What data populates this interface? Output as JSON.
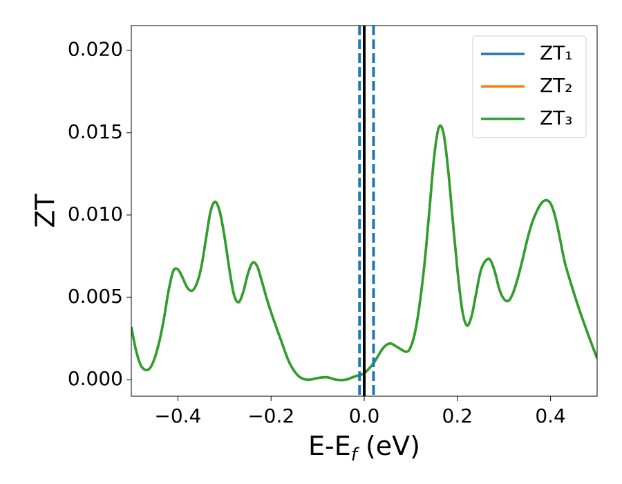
{
  "chart_data": {
    "type": "line",
    "ylabel": "ZT",
    "xlabel": [
      "E-E",
      "f",
      " (eV)"
    ],
    "xlim": [
      -0.5,
      0.5
    ],
    "ylim": [
      -0.001,
      0.0215
    ],
    "xticks": [
      {
        "value": -0.4,
        "label": "−0.4"
      },
      {
        "value": -0.2,
        "label": "−0.2"
      },
      {
        "value": 0,
        "label": "0.0"
      },
      {
        "value": 0.2,
        "label": "0.2"
      },
      {
        "value": 0.4,
        "label": "0.4"
      }
    ],
    "yticks": [
      {
        "value": 0,
        "label": "0.000"
      },
      {
        "value": 0.005,
        "label": "0.005"
      },
      {
        "value": 0.01,
        "label": "0.010"
      },
      {
        "value": 0.015,
        "label": "0.015"
      },
      {
        "value": 0.02,
        "label": "0.020"
      }
    ],
    "grid": false,
    "legend": "upper right",
    "x": [
      -0.5,
      -0.49,
      -0.48,
      -0.47,
      -0.46,
      -0.45,
      -0.44,
      -0.43,
      -0.42,
      -0.41,
      -0.4,
      -0.39,
      -0.38,
      -0.37,
      -0.36,
      -0.35,
      -0.34,
      -0.33,
      -0.32,
      -0.31,
      -0.3,
      -0.29,
      -0.28,
      -0.27,
      -0.26,
      -0.25,
      -0.24,
      -0.23,
      -0.22,
      -0.21,
      -0.2,
      -0.18,
      -0.16,
      -0.14,
      -0.12,
      -0.1,
      -0.08,
      -0.06,
      -0.04,
      -0.02,
      0,
      0.02,
      0.04,
      0.055,
      0.07,
      0.09,
      0.1,
      0.11,
      0.12,
      0.13,
      0.14,
      0.15,
      0.16,
      0.17,
      0.18,
      0.19,
      0.2,
      0.21,
      0.22,
      0.23,
      0.24,
      0.25,
      0.26,
      0.27,
      0.28,
      0.29,
      0.3,
      0.31,
      0.32,
      0.33,
      0.34,
      0.35,
      0.36,
      0.37,
      0.38,
      0.39,
      0.4,
      0.41,
      0.42,
      0.43,
      0.44,
      0.46,
      0.48,
      0.5
    ],
    "series": [
      {
        "name": "ZT₁",
        "color": "#1f77b4",
        "values": [
          0.0032,
          0.0018,
          0.0009,
          0.0006,
          0.0007,
          0.0013,
          0.0023,
          0.0037,
          0.0054,
          0.0066,
          0.0067,
          0.0062,
          0.0056,
          0.0054,
          0.0058,
          0.0068,
          0.0085,
          0.0102,
          0.0108,
          0.0102,
          0.0087,
          0.0068,
          0.0052,
          0.0047,
          0.0053,
          0.0064,
          0.0071,
          0.0069,
          0.006,
          0.005,
          0.0041,
          0.0025,
          0.001,
          0.0002,
          0,
          0.0001,
          0.00015,
          0,
          0,
          0.0002,
          0.0004,
          0.001,
          0.0019,
          0.0022,
          0.002,
          0.0017,
          0.002,
          0.003,
          0.0048,
          0.0072,
          0.0103,
          0.0135,
          0.0153,
          0.015,
          0.0128,
          0.0097,
          0.0067,
          0.0043,
          0.0033,
          0.0038,
          0.0052,
          0.0066,
          0.0072,
          0.0073,
          0.0066,
          0.0055,
          0.0049,
          0.0048,
          0.0053,
          0.0062,
          0.0073,
          0.0085,
          0.0095,
          0.0102,
          0.0107,
          0.0109,
          0.0107,
          0.0099,
          0.0086,
          0.0072,
          0.0062,
          0.0044,
          0.0028,
          0.0013
        ]
      },
      {
        "name": "ZT₂",
        "color": "#ff7f0e",
        "values": [
          0.0032,
          0.0018,
          0.0009,
          0.0006,
          0.0007,
          0.0013,
          0.0023,
          0.0037,
          0.0054,
          0.0066,
          0.0067,
          0.0062,
          0.0056,
          0.0054,
          0.0058,
          0.0068,
          0.0085,
          0.0102,
          0.0108,
          0.0102,
          0.0087,
          0.0068,
          0.0052,
          0.0047,
          0.0053,
          0.0064,
          0.0071,
          0.0069,
          0.006,
          0.005,
          0.0041,
          0.0025,
          0.001,
          0.0002,
          0,
          0.0001,
          0.00015,
          0,
          0,
          0.0002,
          0.0004,
          0.001,
          0.0019,
          0.0022,
          0.002,
          0.0017,
          0.002,
          0.003,
          0.0048,
          0.0072,
          0.0103,
          0.0135,
          0.0153,
          0.015,
          0.0128,
          0.0097,
          0.0067,
          0.0043,
          0.0033,
          0.0038,
          0.0052,
          0.0066,
          0.0072,
          0.0073,
          0.0066,
          0.0055,
          0.0049,
          0.0048,
          0.0053,
          0.0062,
          0.0073,
          0.0085,
          0.0095,
          0.0102,
          0.0107,
          0.0109,
          0.0107,
          0.0099,
          0.0086,
          0.0072,
          0.0062,
          0.0044,
          0.0028,
          0.0013
        ]
      },
      {
        "name": "ZT₃",
        "color": "#2ca02c",
        "values": [
          0.0032,
          0.0018,
          0.0009,
          0.0006,
          0.0007,
          0.0013,
          0.0023,
          0.0037,
          0.0054,
          0.0066,
          0.0067,
          0.0062,
          0.0056,
          0.0054,
          0.0058,
          0.0068,
          0.0085,
          0.0102,
          0.0108,
          0.0102,
          0.0087,
          0.0068,
          0.0052,
          0.0047,
          0.0053,
          0.0064,
          0.0071,
          0.0069,
          0.006,
          0.005,
          0.0041,
          0.0025,
          0.001,
          0.0002,
          0,
          0.0001,
          0.00015,
          0,
          0,
          0.0002,
          0.0004,
          0.001,
          0.0019,
          0.0022,
          0.002,
          0.0017,
          0.002,
          0.003,
          0.0048,
          0.0072,
          0.0103,
          0.0135,
          0.0153,
          0.015,
          0.0128,
          0.0097,
          0.0067,
          0.0043,
          0.0033,
          0.0038,
          0.0052,
          0.0066,
          0.0072,
          0.0073,
          0.0066,
          0.0055,
          0.0049,
          0.0048,
          0.0053,
          0.0062,
          0.0073,
          0.0085,
          0.0095,
          0.0102,
          0.0107,
          0.0109,
          0.0107,
          0.0099,
          0.0086,
          0.0072,
          0.0062,
          0.0044,
          0.0028,
          0.0013
        ]
      }
    ],
    "vlines": [
      {
        "x": -0.01,
        "color": "#1f77b4",
        "style": "dashed"
      },
      {
        "x": 0.02,
        "color": "#1f77b4",
        "style": "dashed"
      },
      {
        "x": 0,
        "color": "#000000",
        "style": "solid"
      }
    ]
  }
}
